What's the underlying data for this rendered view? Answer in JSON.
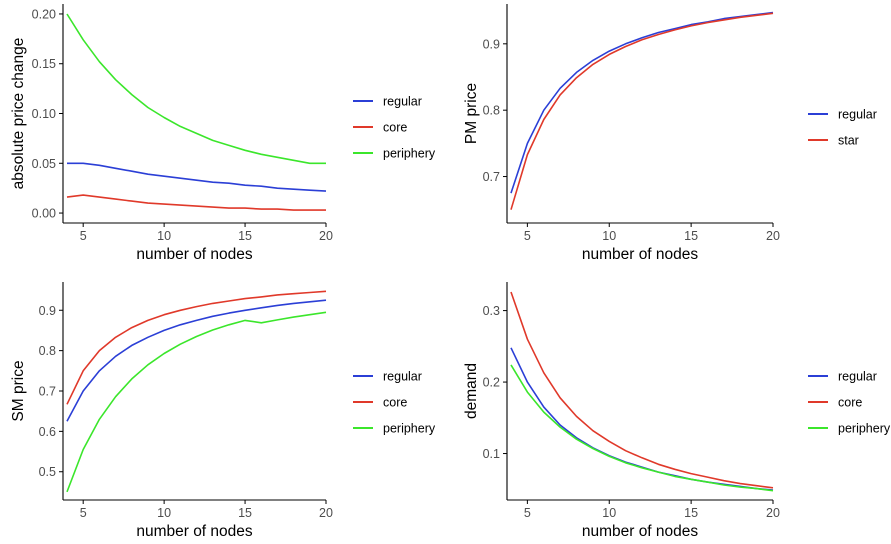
{
  "colors": {
    "regular": "#2b3fd6",
    "core": "#e0392a",
    "periphery": "#3be62b",
    "star": "#e0392a",
    "axis": "#000000",
    "tick_text": "#4d4d4d"
  },
  "chart_data": [
    {
      "type": "line",
      "xlabel": "number of nodes",
      "ylabel": "absolute price change",
      "xlim": [
        4,
        20
      ],
      "ylim": [
        -0.01,
        0.21
      ],
      "xticks": [
        5,
        10,
        15,
        20
      ],
      "yticks": [
        0.0,
        0.05,
        0.1,
        0.15,
        0.2
      ],
      "ytick_labels": [
        "0.00",
        "0.05",
        "0.10",
        "0.15",
        "0.20"
      ],
      "grid": false,
      "legend_position": "right",
      "x": [
        4,
        5,
        6,
        7,
        8,
        9,
        10,
        11,
        12,
        13,
        14,
        15,
        16,
        17,
        18,
        19,
        20
      ],
      "series": [
        {
          "name": "regular",
          "color_key": "regular",
          "values": [
            0.05,
            0.05,
            0.048,
            0.045,
            0.042,
            0.039,
            0.037,
            0.035,
            0.033,
            0.031,
            0.03,
            0.028,
            0.027,
            0.025,
            0.024,
            0.023,
            0.022
          ]
        },
        {
          "name": "core",
          "color_key": "core",
          "values": [
            0.016,
            0.018,
            0.016,
            0.014,
            0.012,
            0.01,
            0.009,
            0.008,
            0.007,
            0.006,
            0.005,
            0.005,
            0.004,
            0.004,
            0.003,
            0.003,
            0.003
          ]
        },
        {
          "name": "periphery",
          "color_key": "periphery",
          "values": [
            0.2,
            0.174,
            0.152,
            0.134,
            0.119,
            0.106,
            0.096,
            0.087,
            0.08,
            0.073,
            0.068,
            0.063,
            0.059,
            0.056,
            0.053,
            0.05,
            0.05
          ]
        }
      ]
    },
    {
      "type": "line",
      "xlabel": "number of nodes",
      "ylabel": "PM price",
      "xlim": [
        4,
        20
      ],
      "ylim": [
        0.63,
        0.96
      ],
      "xticks": [
        5,
        10,
        15,
        20
      ],
      "yticks": [
        0.7,
        0.8,
        0.9
      ],
      "ytick_labels": [
        "0.7",
        "0.8",
        "0.9"
      ],
      "grid": false,
      "legend_position": "right",
      "x": [
        4,
        5,
        6,
        7,
        8,
        9,
        10,
        11,
        12,
        13,
        14,
        15,
        16,
        17,
        18,
        19,
        20
      ],
      "series": [
        {
          "name": "regular",
          "color_key": "regular",
          "values": [
            0.675,
            0.75,
            0.8,
            0.833,
            0.857,
            0.875,
            0.889,
            0.9,
            0.909,
            0.917,
            0.923,
            0.929,
            0.933,
            0.938,
            0.941,
            0.944,
            0.947
          ]
        },
        {
          "name": "star",
          "color_key": "star",
          "values": [
            0.65,
            0.733,
            0.786,
            0.823,
            0.849,
            0.869,
            0.884,
            0.896,
            0.906,
            0.914,
            0.921,
            0.927,
            0.932,
            0.936,
            0.94,
            0.943,
            0.946
          ]
        }
      ]
    },
    {
      "type": "line",
      "xlabel": "number of nodes",
      "ylabel": "SM price",
      "xlim": [
        4,
        20
      ],
      "ylim": [
        0.43,
        0.97
      ],
      "xticks": [
        5,
        10,
        15,
        20
      ],
      "yticks": [
        0.5,
        0.6,
        0.7,
        0.8,
        0.9
      ],
      "ytick_labels": [
        "0.5",
        "0.6",
        "0.7",
        "0.8",
        "0.9"
      ],
      "grid": false,
      "legend_position": "right",
      "x": [
        4,
        5,
        6,
        7,
        8,
        9,
        10,
        11,
        12,
        13,
        14,
        15,
        16,
        17,
        18,
        19,
        20
      ],
      "series": [
        {
          "name": "regular",
          "color_key": "regular",
          "values": [
            0.625,
            0.7,
            0.75,
            0.786,
            0.813,
            0.833,
            0.85,
            0.864,
            0.875,
            0.885,
            0.893,
            0.9,
            0.906,
            0.912,
            0.917,
            0.921,
            0.925
          ]
        },
        {
          "name": "core",
          "color_key": "core",
          "values": [
            0.667,
            0.75,
            0.8,
            0.833,
            0.857,
            0.875,
            0.889,
            0.9,
            0.909,
            0.917,
            0.923,
            0.929,
            0.933,
            0.938,
            0.941,
            0.944,
            0.947
          ]
        },
        {
          "name": "periphery",
          "color_key": "periphery",
          "values": [
            0.45,
            0.555,
            0.63,
            0.686,
            0.73,
            0.765,
            0.793,
            0.816,
            0.835,
            0.851,
            0.864,
            0.875,
            0.869,
            0.876,
            0.883,
            0.889,
            0.895
          ]
        }
      ]
    },
    {
      "type": "line",
      "xlabel": "number of nodes",
      "ylabel": "demand",
      "xlim": [
        4,
        20
      ],
      "ylim": [
        0.035,
        0.34
      ],
      "xticks": [
        5,
        10,
        15,
        20
      ],
      "yticks": [
        0.1,
        0.2,
        0.3
      ],
      "ytick_labels": [
        "0.1",
        "0.2",
        "0.3"
      ],
      "grid": false,
      "legend_position": "right",
      "x": [
        4,
        5,
        6,
        7,
        8,
        9,
        10,
        11,
        12,
        13,
        14,
        15,
        16,
        17,
        18,
        19,
        20
      ],
      "series": [
        {
          "name": "regular",
          "color_key": "regular",
          "values": [
            0.248,
            0.2,
            0.165,
            0.14,
            0.122,
            0.108,
            0.097,
            0.088,
            0.081,
            0.074,
            0.069,
            0.064,
            0.06,
            0.057,
            0.054,
            0.051,
            0.049
          ]
        },
        {
          "name": "core",
          "color_key": "core",
          "values": [
            0.326,
            0.26,
            0.213,
            0.178,
            0.152,
            0.132,
            0.117,
            0.104,
            0.094,
            0.085,
            0.078,
            0.072,
            0.067,
            0.062,
            0.058,
            0.055,
            0.052
          ]
        },
        {
          "name": "periphery",
          "color_key": "periphery",
          "values": [
            0.224,
            0.186,
            0.158,
            0.137,
            0.12,
            0.107,
            0.096,
            0.087,
            0.08,
            0.074,
            0.068,
            0.064,
            0.06,
            0.056,
            0.053,
            0.051,
            0.048
          ]
        }
      ]
    }
  ]
}
